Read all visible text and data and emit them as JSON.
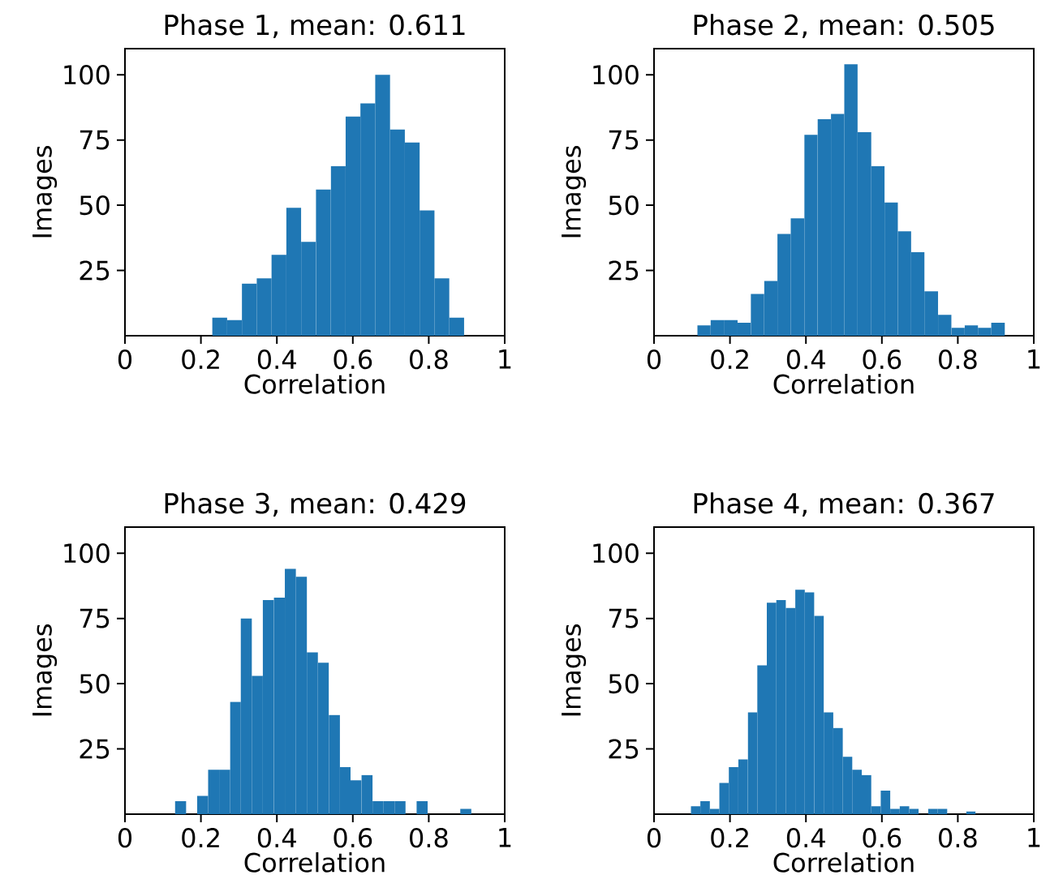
{
  "chart_data": [
    {
      "type": "histogram",
      "title": "Phase 1, mean: 0.611",
      "xlabel": "Correlation",
      "ylabel": "Images",
      "color": "#1f77b4",
      "xlim": [
        0,
        1
      ],
      "ylim": [
        0,
        110
      ],
      "xticks": [
        0,
        0.2,
        0.4,
        0.6,
        0.8,
        1
      ],
      "yticks": [
        25,
        50,
        75,
        100
      ],
      "bins": [
        0.23,
        0.269,
        0.308,
        0.347,
        0.386,
        0.425,
        0.464,
        0.503,
        0.542,
        0.581,
        0.62,
        0.659,
        0.698,
        0.737,
        0.776,
        0.815,
        0.854,
        0.893
      ],
      "values": [
        7,
        6,
        20,
        22,
        31,
        49,
        36,
        56,
        65,
        84,
        89,
        100,
        79,
        74,
        48,
        22,
        7
      ]
    },
    {
      "type": "histogram",
      "title": "Phase 2, mean: 0.505",
      "xlabel": "Correlation",
      "ylabel": "Images",
      "color": "#1f77b4",
      "xlim": [
        0,
        1
      ],
      "ylim": [
        0,
        110
      ],
      "xticks": [
        0,
        0.2,
        0.4,
        0.6,
        0.8,
        1
      ],
      "yticks": [
        25,
        50,
        75,
        100
      ],
      "bins": [
        0.114,
        0.149,
        0.184,
        0.22,
        0.255,
        0.29,
        0.325,
        0.36,
        0.396,
        0.431,
        0.466,
        0.501,
        0.536,
        0.572,
        0.607,
        0.642,
        0.677,
        0.712,
        0.748,
        0.783,
        0.818,
        0.853,
        0.888,
        0.924
      ],
      "values": [
        4,
        6,
        6,
        5,
        16,
        21,
        39,
        45,
        77,
        83,
        85,
        104,
        78,
        65,
        51,
        40,
        32,
        17,
        8,
        3,
        4,
        3,
        5
      ]
    },
    {
      "type": "histogram",
      "title": "Phase 3, mean: 0.429",
      "xlabel": "Correlation",
      "ylabel": "Images",
      "color": "#1f77b4",
      "xlim": [
        0,
        1
      ],
      "ylim": [
        0,
        110
      ],
      "xticks": [
        0,
        0.2,
        0.4,
        0.6,
        0.8,
        1
      ],
      "yticks": [
        25,
        50,
        75,
        100
      ],
      "bins": [
        0.132,
        0.161,
        0.19,
        0.219,
        0.248,
        0.277,
        0.305,
        0.334,
        0.363,
        0.392,
        0.421,
        0.45,
        0.479,
        0.508,
        0.537,
        0.566,
        0.594,
        0.623,
        0.652,
        0.681,
        0.71,
        0.739,
        0.768,
        0.797,
        0.826,
        0.855,
        0.883,
        0.912
      ],
      "values": [
        5,
        0,
        7,
        17,
        17,
        43,
        75,
        53,
        82,
        83,
        94,
        91,
        62,
        58,
        38,
        18,
        13,
        15,
        5,
        5,
        5,
        0,
        5,
        0,
        0,
        0,
        2
      ]
    },
    {
      "type": "histogram",
      "title": "Phase 4, mean: 0.367",
      "xlabel": "Correlation",
      "ylabel": "Images",
      "color": "#1f77b4",
      "xlim": [
        0,
        1
      ],
      "ylim": [
        0,
        110
      ],
      "xticks": [
        0,
        0.2,
        0.4,
        0.6,
        0.8,
        1
      ],
      "yticks": [
        25,
        50,
        75,
        100
      ],
      "bins": [
        0.097,
        0.122,
        0.147,
        0.172,
        0.197,
        0.222,
        0.247,
        0.272,
        0.297,
        0.322,
        0.347,
        0.372,
        0.397,
        0.422,
        0.447,
        0.472,
        0.497,
        0.522,
        0.547,
        0.572,
        0.597,
        0.622,
        0.647,
        0.672,
        0.697,
        0.722,
        0.747,
        0.772,
        0.797,
        0.822,
        0.847
      ],
      "values": [
        3,
        5,
        2,
        12,
        18,
        21,
        39,
        57,
        81,
        82,
        79,
        86,
        85,
        76,
        39,
        33,
        22,
        17,
        15,
        3,
        9,
        2,
        3,
        2,
        0,
        2,
        2,
        0,
        0,
        1
      ]
    }
  ]
}
